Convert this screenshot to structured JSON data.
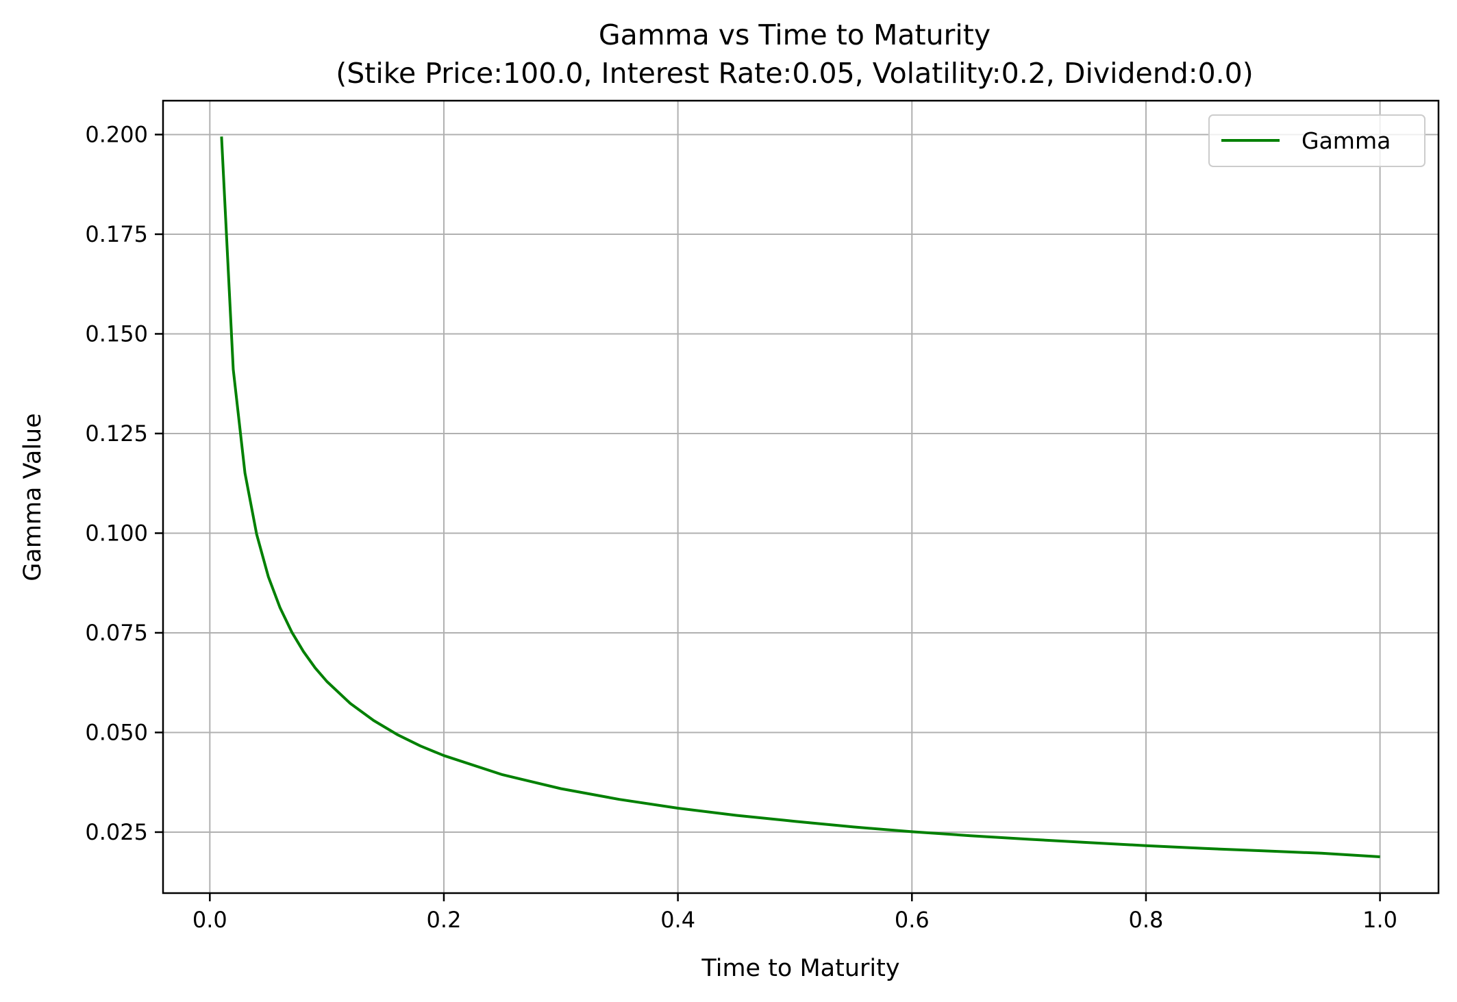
{
  "chart_data": {
    "type": "line",
    "title": "Gamma vs Time to Maturity",
    "subtitle": "(Stike Price:100.0, Interest Rate:0.05, Volatility:0.2, Dividend:0.0)",
    "xlabel": "Time to Maturity",
    "ylabel": "Gamma Value",
    "xlim": [
      -0.04,
      1.05
    ],
    "ylim": [
      0.0097,
      0.2085
    ],
    "xticks": [
      0.0,
      0.2,
      0.4,
      0.6,
      0.8,
      1.0
    ],
    "xtick_labels": [
      "0.0",
      "0.2",
      "0.4",
      "0.6",
      "0.8",
      "1.0"
    ],
    "yticks": [
      0.025,
      0.05,
      0.075,
      0.1,
      0.125,
      0.15,
      0.175,
      0.2
    ],
    "ytick_labels": [
      "0.025",
      "0.050",
      "0.075",
      "0.100",
      "0.125",
      "0.150",
      "0.175",
      "0.200"
    ],
    "grid": true,
    "legend_position": "top-right",
    "series": [
      {
        "name": "Gamma",
        "color": "#008000",
        "x": [
          0.01,
          0.02,
          0.03,
          0.04,
          0.05,
          0.06,
          0.07,
          0.08,
          0.09,
          0.1,
          0.12,
          0.14,
          0.16,
          0.18,
          0.2,
          0.25,
          0.3,
          0.35,
          0.4,
          0.45,
          0.5,
          0.55,
          0.6,
          0.65,
          0.7,
          0.75,
          0.8,
          0.85,
          0.9,
          0.95,
          1.0
        ],
        "y": [
          0.1995,
          0.1411,
          0.1151,
          0.0997,
          0.0891,
          0.0813,
          0.0752,
          0.0703,
          0.0662,
          0.0628,
          0.0573,
          0.053,
          0.0495,
          0.0466,
          0.0442,
          0.0394,
          0.0359,
          0.0332,
          0.031,
          0.0292,
          0.0277,
          0.0263,
          0.0251,
          0.0241,
          0.0232,
          0.0224,
          0.0216,
          0.0209,
          0.0203,
          0.0197,
          0.0188
        ]
      }
    ]
  }
}
